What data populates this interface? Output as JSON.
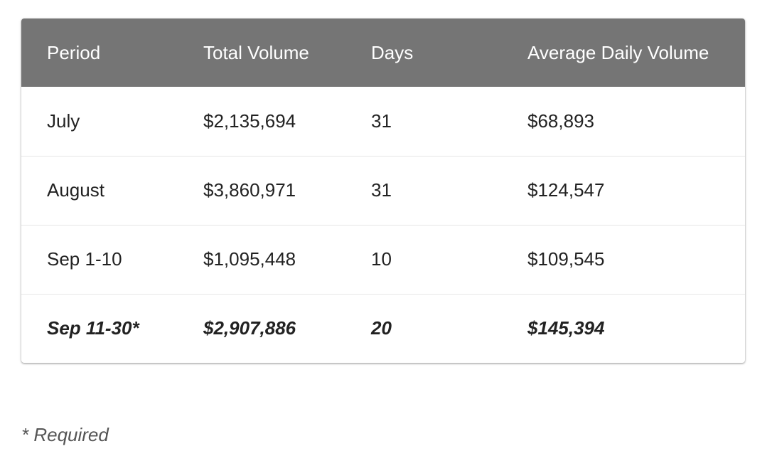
{
  "table": {
    "headers": [
      "Period",
      "Total Volume",
      "Days",
      "Average Daily Volume"
    ],
    "rows": [
      [
        "July",
        "$2,135,694",
        "31",
        "$68,893"
      ],
      [
        "August",
        "$3,860,971",
        "31",
        "$124,547"
      ],
      [
        "Sep 1-10",
        "$1,095,448",
        "10",
        "$109,545"
      ],
      [
        "Sep 11-30*",
        "$2,907,886",
        "20",
        "$145,394"
      ]
    ]
  },
  "footnote": "* Required",
  "colors": {
    "header_background": "#757575",
    "header_text": "#ffffff",
    "body_text": "#222222",
    "row_divider": "#e6e6e6",
    "footnote_text": "#555555"
  }
}
